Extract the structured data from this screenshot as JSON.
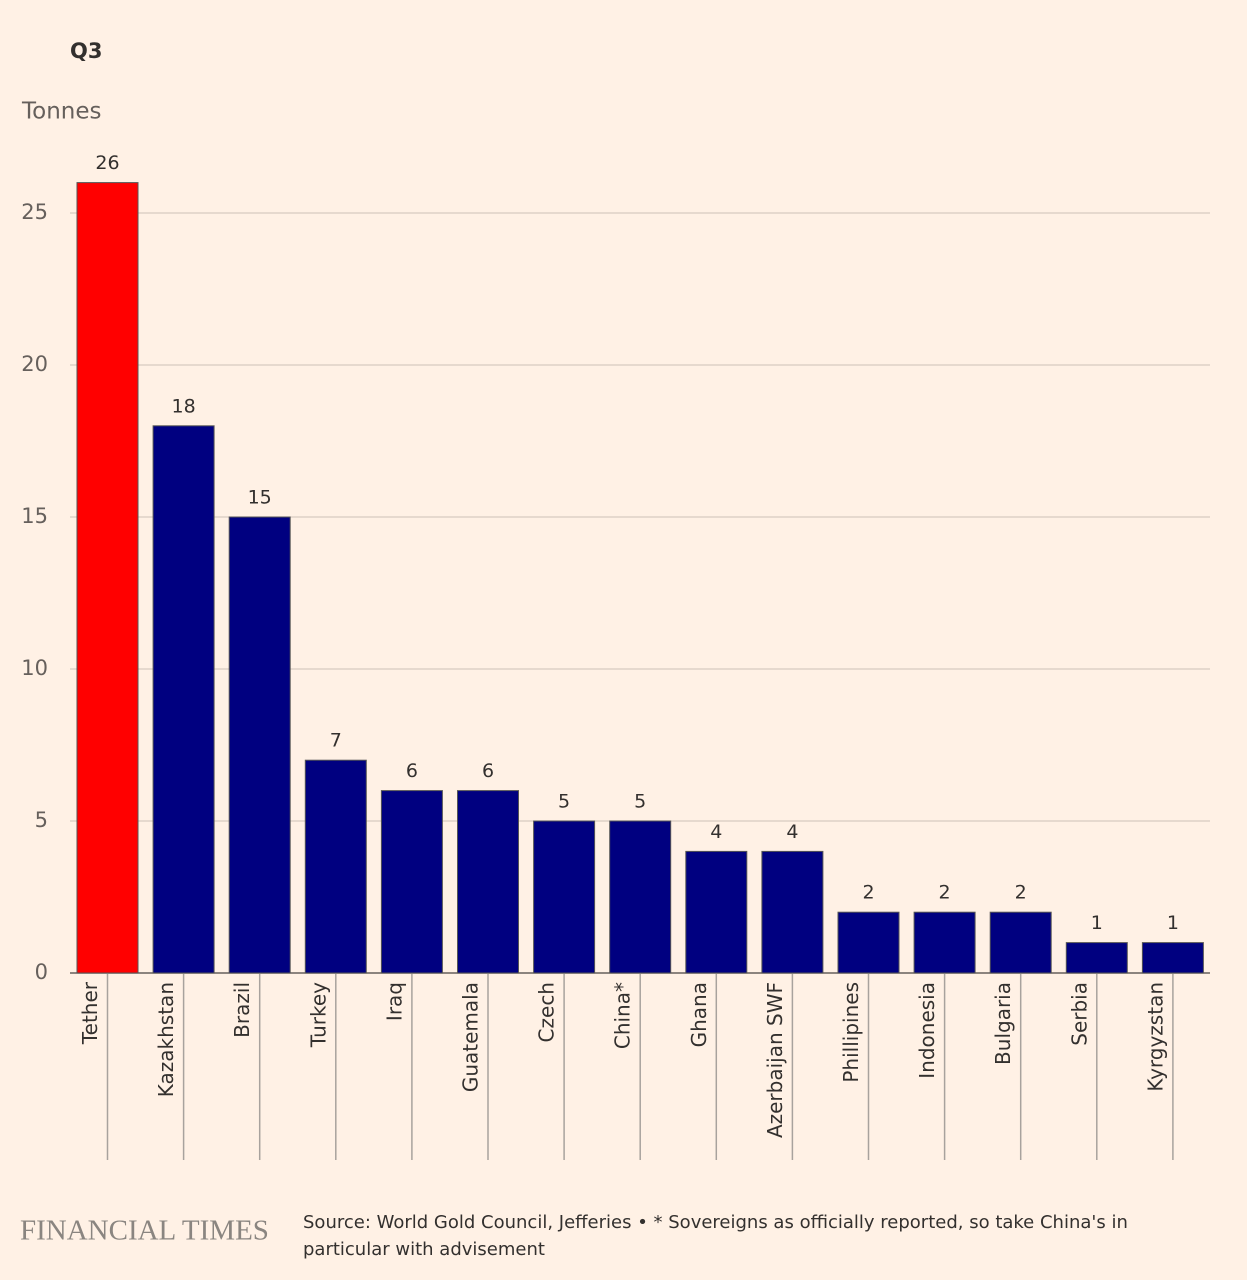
{
  "chart_data": {
    "type": "bar",
    "title": "Q3",
    "y_label": "Tonnes",
    "categories": [
      "Tether",
      "Kazakhstan",
      "Brazil",
      "Turkey",
      "Iraq",
      "Guatemala",
      "Czech",
      "China*",
      "Ghana",
      "Azerbaijan SWF",
      "Phillipines",
      "Indonesia",
      "Bulgaria",
      "Serbia",
      "Kyrgyzstan"
    ],
    "values": [
      26,
      18,
      15,
      7,
      6,
      6,
      5,
      5,
      4,
      4,
      2,
      2,
      2,
      1,
      1
    ],
    "colors": [
      "#ff0000",
      "#000080",
      "#000080",
      "#000080",
      "#000080",
      "#000080",
      "#000080",
      "#000080",
      "#000080",
      "#000080",
      "#000080",
      "#000080",
      "#000080",
      "#000080",
      "#000080"
    ],
    "ylim": [
      0,
      25
    ],
    "yticks": [
      0,
      5,
      10,
      15,
      20,
      25
    ],
    "grid": true,
    "source": "Source: World Gold Council, Jefferies • * Sovereigns as officially reported, so take China's in particular with advisement",
    "brand": "FINANCIAL TIMES"
  }
}
